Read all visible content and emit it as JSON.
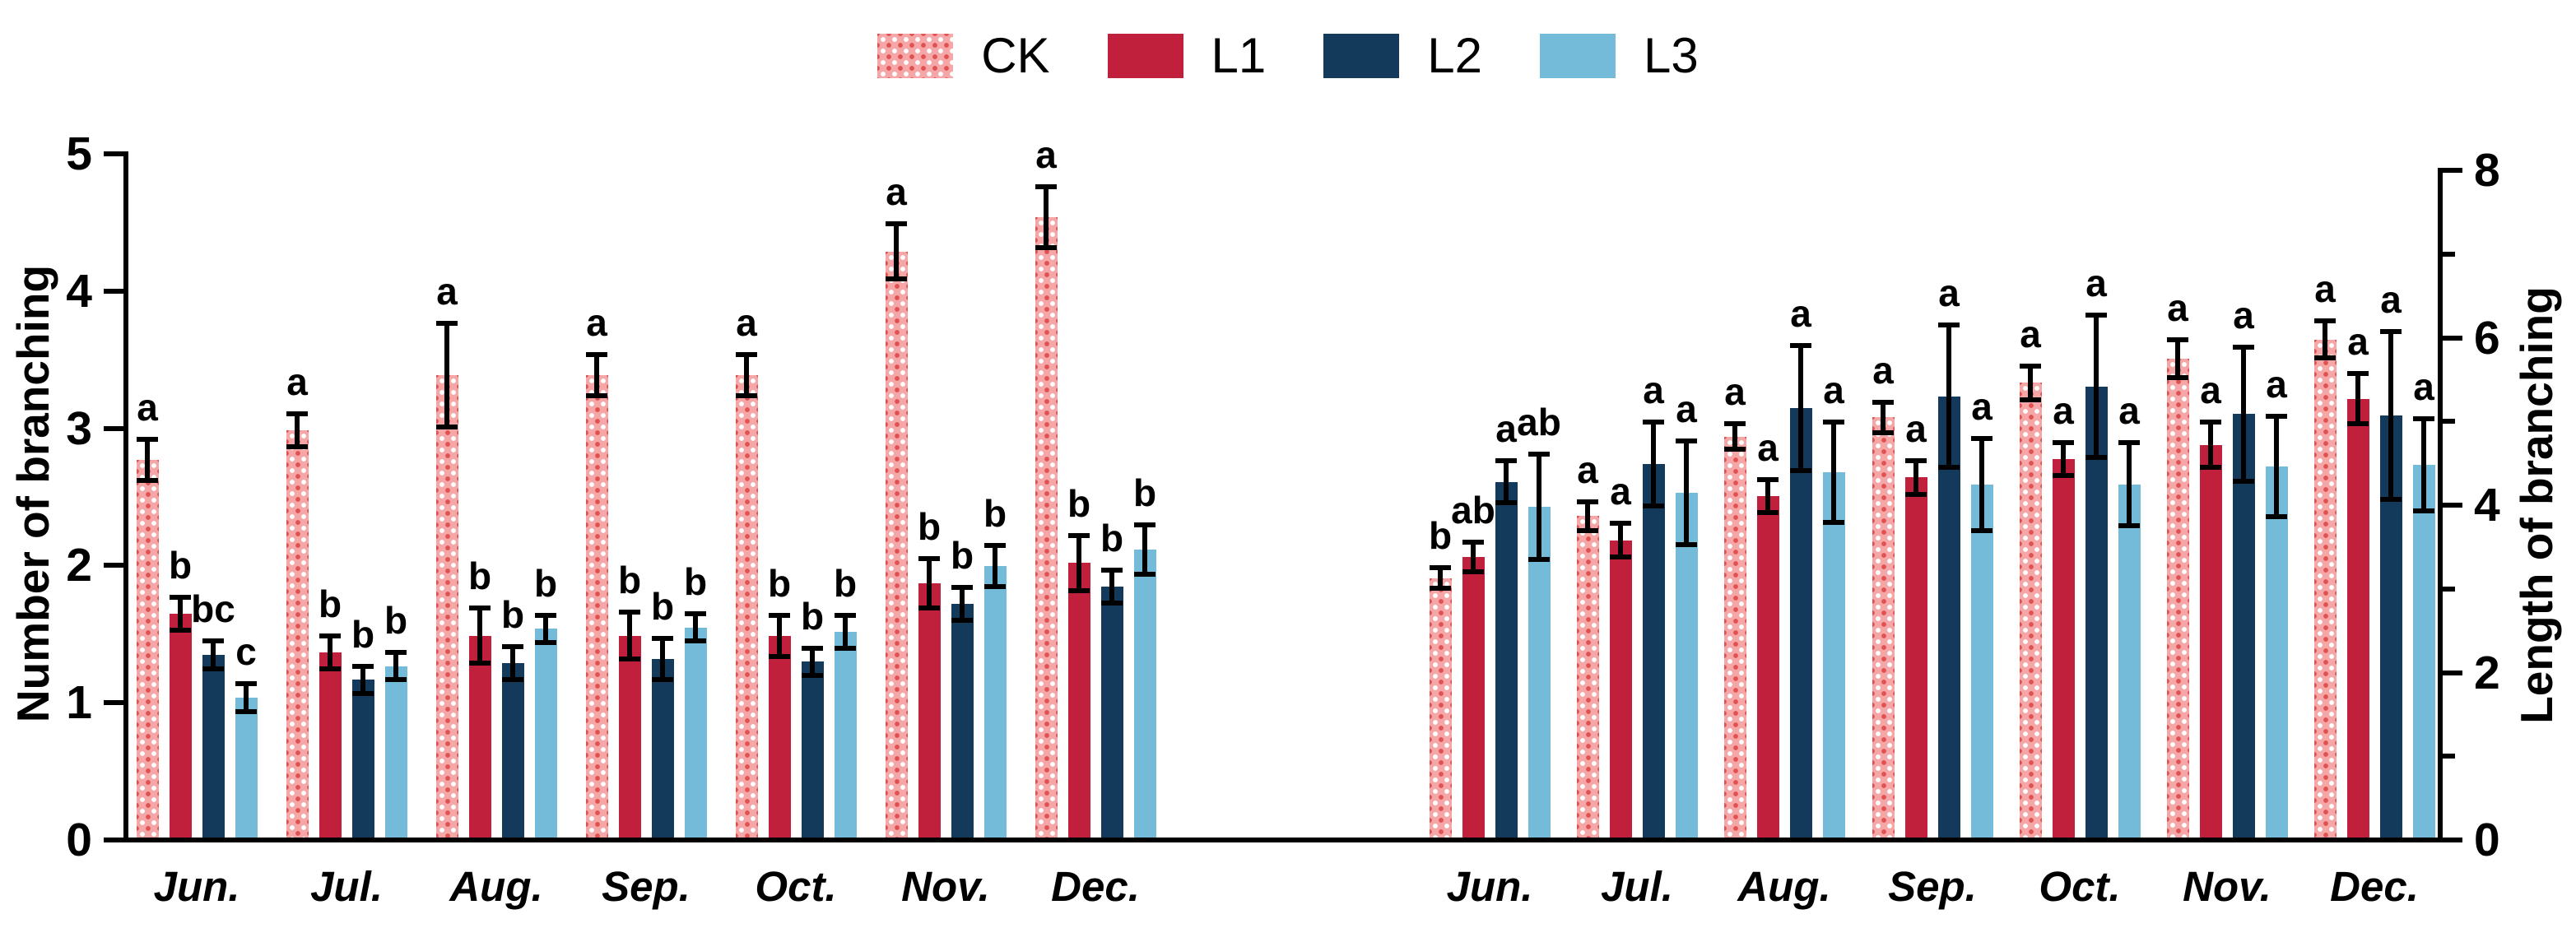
{
  "figure": {
    "background": "#ffffff"
  },
  "legend": {
    "items": [
      {
        "label": "CK",
        "swatch": "ck"
      },
      {
        "label": "L1",
        "swatch": "l1"
      },
      {
        "label": "L2",
        "swatch": "l2"
      },
      {
        "label": "L3",
        "swatch": "l3"
      }
    ]
  },
  "colors": {
    "ck_base": "#F5A6A6",
    "ck_dot_light": "#FFFFFF",
    "ck_dot_dark": "#E25151",
    "l1": "#C0203C",
    "l2": "#133A5B",
    "l3": "#74BAD9",
    "axis": "#000000",
    "error_bar": "#000000"
  },
  "chart_data": [
    {
      "type": "bar",
      "panel": "left",
      "title": "",
      "ylabel": "Number of branching",
      "xlabel": "",
      "ylim": [
        0,
        5
      ],
      "yticks": [
        0,
        1,
        2,
        3,
        4,
        5
      ],
      "yticks_minor": [],
      "axis_side": "left",
      "grid": false,
      "legend_position": "top-center",
      "error_bars": "symmetric, capped",
      "categories": [
        "Jun.",
        "Jul.",
        "Aug.",
        "Sep.",
        "Oct.",
        "Nov.",
        "Dec."
      ],
      "series": [
        {
          "name": "CK",
          "values": [
            2.75,
            2.97,
            3.37,
            3.37,
            3.37,
            4.27,
            4.52
          ],
          "errors": [
            0.15,
            0.12,
            0.38,
            0.15,
            0.15,
            0.2,
            0.22
          ],
          "sig_letters": [
            "a",
            "a",
            "a",
            "a",
            "a",
            "a",
            "a"
          ]
        },
        {
          "name": "L1",
          "values": [
            1.63,
            1.35,
            1.47,
            1.47,
            1.47,
            1.85,
            2.0
          ],
          "errors": [
            0.12,
            0.12,
            0.2,
            0.17,
            0.15,
            0.18,
            0.2
          ],
          "sig_letters": [
            "b",
            "b",
            "b",
            "b",
            "b",
            "b",
            "b"
          ]
        },
        {
          "name": "L2",
          "values": [
            1.33,
            1.15,
            1.27,
            1.3,
            1.28,
            1.7,
            1.83
          ],
          "errors": [
            0.1,
            0.1,
            0.12,
            0.15,
            0.1,
            0.12,
            0.12
          ],
          "sig_letters": [
            "bc",
            "b",
            "b",
            "b",
            "b",
            "b",
            "b"
          ]
        },
        {
          "name": "L3",
          "values": [
            1.02,
            1.25,
            1.52,
            1.53,
            1.5,
            1.98,
            2.1
          ],
          "errors": [
            0.1,
            0.1,
            0.1,
            0.1,
            0.12,
            0.15,
            0.18
          ],
          "sig_letters": [
            "c",
            "b",
            "b",
            "b",
            "b",
            "b",
            "b"
          ]
        }
      ]
    },
    {
      "type": "bar",
      "panel": "right",
      "title": "",
      "ylabel": "Length of branching",
      "xlabel": "",
      "ylim": [
        0,
        8
      ],
      "yticks": [
        0,
        2,
        4,
        6,
        8
      ],
      "yticks_minor": [
        1,
        3,
        5,
        7
      ],
      "axis_side": "right",
      "grid": false,
      "legend_position": "top-center",
      "error_bars": "symmetric, capped",
      "categories": [
        "Jun.",
        "Jul.",
        "Aug.",
        "Sep.",
        "Oct.",
        "Nov.",
        "Dec."
      ],
      "series": [
        {
          "name": "CK",
          "values": [
            3.1,
            3.84,
            4.79,
            5.02,
            5.43,
            5.72,
            5.95
          ],
          "errors": [
            0.12,
            0.17,
            0.15,
            0.18,
            0.2,
            0.23,
            0.22
          ],
          "sig_letters": [
            "b",
            "a",
            "a",
            "a",
            "a",
            "a",
            "a"
          ]
        },
        {
          "name": "L1",
          "values": [
            3.35,
            3.55,
            4.08,
            4.3,
            4.52,
            4.69,
            5.24
          ],
          "errors": [
            0.18,
            0.2,
            0.2,
            0.2,
            0.2,
            0.27,
            0.3
          ],
          "sig_letters": [
            "ab",
            "a",
            "a",
            "a",
            "a",
            "a",
            "a"
          ]
        },
        {
          "name": "L2",
          "values": [
            4.25,
            4.46,
            5.13,
            5.27,
            5.39,
            5.06,
            5.04
          ],
          "errors": [
            0.25,
            0.5,
            0.75,
            0.85,
            0.85,
            0.8,
            1.0
          ],
          "sig_letters": [
            "a",
            "a",
            "a",
            "a",
            "a",
            "a",
            "a"
          ]
        },
        {
          "name": "L3",
          "values": [
            3.95,
            4.12,
            4.36,
            4.22,
            4.22,
            4.43,
            4.45
          ],
          "errors": [
            0.63,
            0.62,
            0.6,
            0.55,
            0.5,
            0.6,
            0.55
          ],
          "sig_letters": [
            "ab",
            "a",
            "a",
            "a",
            "a",
            "a",
            "a"
          ]
        }
      ]
    }
  ]
}
